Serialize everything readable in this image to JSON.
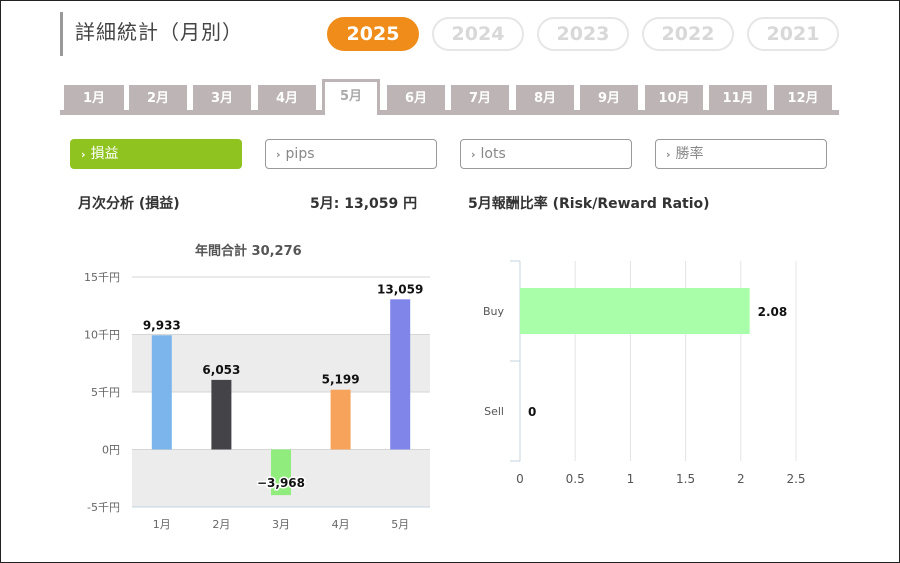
{
  "header": {
    "title": "詳細統計（月別）",
    "years": [
      "2025",
      "2024",
      "2023",
      "2022",
      "2021"
    ],
    "active_year": "2025"
  },
  "months": {
    "tabs": [
      "1月",
      "2月",
      "3月",
      "4月",
      "5月",
      "6月",
      "7月",
      "8月",
      "9月",
      "10月",
      "11月",
      "12月"
    ],
    "active": "5月"
  },
  "metrics": {
    "tabs": [
      "損益",
      "pips",
      "lots",
      "勝率"
    ],
    "active": "損益",
    "chevron": "›",
    "chevron_icon": "chevron-right-icon"
  },
  "summary": {
    "monthly_label": "月次分析 (損益)",
    "month_value": "5月:  13,059 円",
    "rr_label": "5月報酬比率 (Risk/Reward Ratio)"
  },
  "colors": {
    "accent_year": "#f08c1a",
    "accent_metric": "#8fc31f",
    "tab_gray": "#bdb5b5"
  },
  "chart_data": [
    {
      "type": "bar",
      "title": "年間合計 30,276",
      "categories": [
        "1月",
        "2月",
        "3月",
        "4月",
        "5月"
      ],
      "values": [
        9933,
        6053,
        -3968,
        5199,
        13059
      ],
      "data_labels": [
        "9,933",
        "6,053",
        "−3,968",
        "5,199",
        "13,059"
      ],
      "bar_colors": [
        "#7cb5ec",
        "#434348",
        "#90ed7d",
        "#f7a35c",
        "#8085e9"
      ],
      "y_ticks": [
        15000,
        10000,
        5000,
        0,
        -5000
      ],
      "y_tick_labels": [
        "15千円",
        "10千円",
        "5千円",
        "0円",
        "-5千円"
      ],
      "ylim": [
        -5000,
        15000
      ],
      "grid": true,
      "legend": "none"
    },
    {
      "type": "bar",
      "orientation": "horizontal",
      "categories": [
        "Buy",
        "Sell"
      ],
      "values": [
        2.08,
        0
      ],
      "data_labels": [
        "2.08",
        "0"
      ],
      "bar_color": "#a9ffa9",
      "x_ticks": [
        0,
        0.5,
        1,
        1.5,
        2,
        2.5
      ],
      "x_tick_labels": [
        "0",
        "0.5",
        "1",
        "1.5",
        "2",
        "2.5"
      ],
      "xlim": [
        0,
        2.5
      ],
      "grid": true,
      "legend": "none"
    }
  ]
}
